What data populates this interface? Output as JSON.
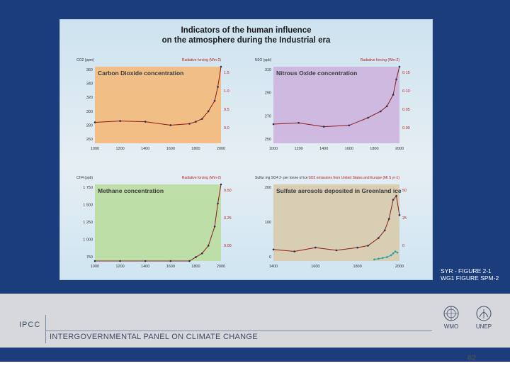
{
  "figure": {
    "title_line1": "Indicators of the human influence",
    "title_line2": "on the atmosphere during the Industrial era"
  },
  "caption": {
    "line1": "SYR - FIGURE 2-1",
    "line2": "WG1 FIGURE SPM-2"
  },
  "footer": {
    "short_name": "IPCC",
    "full_name": "INTERGOVERNMENTAL PANEL ON CLIMATE CHANGE",
    "logo_wmo": "WMO",
    "logo_unep": "UNEP",
    "page_number": "62"
  },
  "colors": {
    "slide_bg": "#1c3d7c",
    "co2_bg": "#f4b673",
    "n2o_bg": "#cbb0dd",
    "ch4_bg": "#b9dc9a",
    "so4_bg": "#d7c9a8",
    "curve": "#8b1a1a",
    "ice_core_points": "#2b2b5a",
    "so2_curve": "#19a3a3"
  },
  "chart_data": [
    {
      "type": "line",
      "title": "Carbon Dioxide concentration",
      "ylabel_left": "CO2 (ppm)",
      "ylabel_right": "Radiative forcing (Wm-2)",
      "xlim": [
        1000,
        2000
      ],
      "ylim": [
        250,
        360
      ],
      "x_ticks": [
        "1000",
        "1200",
        "1400",
        "1600",
        "1800",
        "2000"
      ],
      "y_ticks_left": [
        "360",
        "340",
        "320",
        "300",
        "280",
        "260"
      ],
      "y_ticks_right": [
        "1.5",
        "1.0",
        "0.5",
        "0.0"
      ],
      "series": [
        {
          "x": [
            1000,
            1200,
            1400,
            1600,
            1750,
            1800,
            1850,
            1900,
            1950,
            1975,
            2000
          ],
          "y": [
            280,
            282,
            281,
            276,
            278,
            281,
            285,
            296,
            311,
            331,
            368
          ]
        }
      ]
    },
    {
      "type": "line",
      "title": "Nitrous Oxide concentration",
      "ylabel_left": "N2O (ppb)",
      "ylabel_right": "Radiative forcing (Wm-2)",
      "xlim": [
        1000,
        2000
      ],
      "ylim": [
        250,
        310
      ],
      "x_ticks": [
        "1000",
        "1200",
        "1400",
        "1600",
        "1800",
        "2000"
      ],
      "y_ticks_left": [
        "310",
        "290",
        "270",
        "250"
      ],
      "y_ticks_right": [
        "0.15",
        "0.10",
        "0.05",
        "0.00"
      ],
      "series": [
        {
          "x": [
            1000,
            1200,
            1400,
            1600,
            1750,
            1850,
            1900,
            1950,
            1975,
            2000
          ],
          "y": [
            265,
            266,
            263,
            264,
            270,
            275,
            279,
            288,
            300,
            316
          ]
        }
      ]
    },
    {
      "type": "line",
      "title": "Methane concentration",
      "ylabel_left": "CH4 (ppb)",
      "ylabel_right": "Radiative forcing (Wm-2)",
      "xlim": [
        1000,
        2000
      ],
      "ylim": [
        750,
        1750
      ],
      "x_ticks": [
        "1000",
        "1200",
        "1400",
        "1600",
        "1800",
        "2000"
      ],
      "y_ticks_left": [
        "1 750",
        "1 500",
        "1 250",
        "1 000",
        "750"
      ],
      "y_ticks_right": [
        "0.50",
        "0.25",
        "0.00"
      ],
      "series": [
        {
          "x": [
            1000,
            1200,
            1400,
            1600,
            1750,
            1800,
            1850,
            1900,
            1950,
            1975,
            2000
          ],
          "y": [
            700,
            700,
            720,
            700,
            740,
            800,
            850,
            950,
            1200,
            1500,
            1760
          ]
        }
      ]
    },
    {
      "type": "line",
      "title": "Sulfate aerosols deposited in Greenland ice",
      "ylabel_left": "Sulfur mg SO4 2- per tonne of ice",
      "ylabel_right": "SO2 emissions from United States and Europe (Mt S yr-1)",
      "xlim": [
        1400,
        2000
      ],
      "ylim": [
        0,
        200
      ],
      "x_ticks": [
        "1400",
        "1600",
        "1800",
        "2000"
      ],
      "y_ticks_left": [
        "200",
        "100",
        "0"
      ],
      "y_ticks_right": [
        "50",
        "25",
        "0"
      ],
      "series": [
        {
          "x": [
            1400,
            1500,
            1600,
            1700,
            1800,
            1850,
            1900,
            1930,
            1950,
            1970,
            1985,
            2000
          ],
          "y": [
            30,
            25,
            35,
            28,
            35,
            40,
            60,
            80,
            110,
            160,
            170,
            120
          ]
        },
        {
          "x": [
            1880,
            1900,
            1920,
            1940,
            1960,
            1970,
            1980,
            1990
          ],
          "y": [
            4,
            6,
            8,
            10,
            15,
            20,
            25,
            22
          ]
        }
      ]
    }
  ]
}
